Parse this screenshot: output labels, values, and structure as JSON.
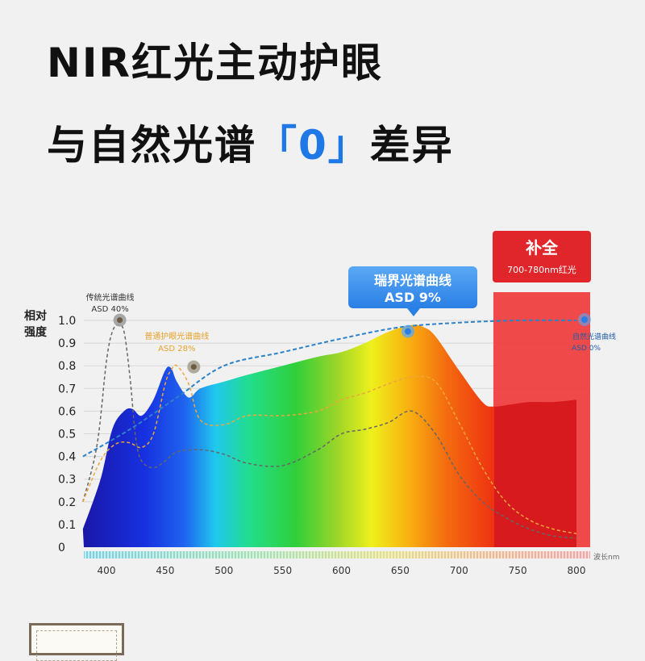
{
  "heading": {
    "line1": "NIR红光主动护眼",
    "line2_a": "与自然光谱",
    "line2_b": "「0」",
    "line2_c": "差异"
  },
  "chart_data": {
    "type": "line",
    "ylabel": "相对\n强度",
    "xlabel": "波长nm",
    "xlim": [
      380,
      810
    ],
    "ylim": [
      0,
      1.0
    ],
    "x_ticks": [
      400,
      450,
      500,
      550,
      600,
      650,
      700,
      750,
      800
    ],
    "y_ticks": [
      0,
      0.1,
      0.2,
      0.3,
      0.4,
      0.5,
      0.6,
      0.7,
      0.8,
      0.9,
      1.0
    ],
    "y_tick_labels": [
      "0",
      "0.1",
      "0.2",
      "0.3",
      "0.4",
      "0.5",
      "0.6",
      "0.7",
      "0.8",
      "0.9",
      "1.0"
    ],
    "series": [
      {
        "name": "瑞界光谱曲线",
        "note": "ASD 9%",
        "style": "spectrum-fill",
        "x": [
          380,
          395,
          405,
          415,
          422,
          430,
          440,
          450,
          455,
          460,
          470,
          480,
          500,
          520,
          550,
          580,
          600,
          620,
          640,
          660,
          670,
          680,
          700,
          720,
          730,
          745,
          760,
          780,
          800
        ],
        "y": [
          0.08,
          0.3,
          0.52,
          0.6,
          0.61,
          0.58,
          0.65,
          0.78,
          0.79,
          0.73,
          0.66,
          0.7,
          0.73,
          0.76,
          0.8,
          0.84,
          0.86,
          0.9,
          0.95,
          0.98,
          0.97,
          0.93,
          0.78,
          0.64,
          0.62,
          0.63,
          0.64,
          0.64,
          0.65
        ]
      },
      {
        "name": "传统光谱曲线",
        "note": "ASD 40%",
        "style": "dashed",
        "color": "#666666",
        "x": [
          380,
          392,
          400,
          405,
          410,
          415,
          420,
          425,
          430,
          440,
          450,
          460,
          480,
          500,
          520,
          550,
          580,
          600,
          620,
          640,
          660,
          680,
          700,
          720,
          740,
          760,
          780,
          800
        ],
        "y": [
          0.2,
          0.45,
          0.82,
          0.95,
          0.98,
          0.95,
          0.75,
          0.48,
          0.38,
          0.35,
          0.38,
          0.42,
          0.43,
          0.41,
          0.37,
          0.36,
          0.43,
          0.5,
          0.52,
          0.55,
          0.6,
          0.5,
          0.32,
          0.2,
          0.13,
          0.08,
          0.05,
          0.04
        ]
      },
      {
        "name": "普通护眼光谱曲线",
        "note": "ASD 28%",
        "style": "dashed",
        "color": "#eea63a",
        "x": [
          380,
          392,
          400,
          410,
          420,
          430,
          440,
          450,
          455,
          460,
          470,
          480,
          500,
          520,
          550,
          580,
          600,
          620,
          640,
          660,
          680,
          700,
          720,
          740,
          760,
          780,
          800
        ],
        "y": [
          0.2,
          0.35,
          0.42,
          0.46,
          0.46,
          0.44,
          0.5,
          0.72,
          0.78,
          0.8,
          0.72,
          0.56,
          0.54,
          0.58,
          0.58,
          0.6,
          0.65,
          0.68,
          0.72,
          0.75,
          0.73,
          0.55,
          0.35,
          0.2,
          0.12,
          0.08,
          0.06
        ]
      },
      {
        "name": "自然光谱曲线",
        "note": "ASD 0%",
        "style": "dashed",
        "color": "#2d82c8",
        "x": [
          380,
          420,
          460,
          500,
          550,
          600,
          650,
          700,
          750,
          800
        ],
        "y": [
          0.4,
          0.52,
          0.66,
          0.8,
          0.86,
          0.92,
          0.97,
          0.99,
          1.0,
          1.0
        ]
      }
    ],
    "highlight_region": {
      "x_range": [
        730,
        810
      ],
      "title": "补全",
      "subtitle": "700-780nm红光"
    },
    "annotations": [
      {
        "text": "传统光谱曲线",
        "sub": "ASD 40%",
        "x": 410,
        "y": 0.98,
        "color": "#333333"
      },
      {
        "text": "普通护眼光谱曲线",
        "sub": "ASD 28%",
        "x": 475,
        "y": 0.82,
        "color": "#e7a22c"
      },
      {
        "text": "瑞界光谱曲线",
        "sub": "ASD 9%",
        "x": 660,
        "y": 0.98,
        "color": "#ffffff"
      },
      {
        "text": "自然光谱曲线",
        "sub": "ASD 0%",
        "x": 800,
        "y": 1.0,
        "color": "#1f5ea8"
      }
    ],
    "legend": "none",
    "grid": true
  }
}
